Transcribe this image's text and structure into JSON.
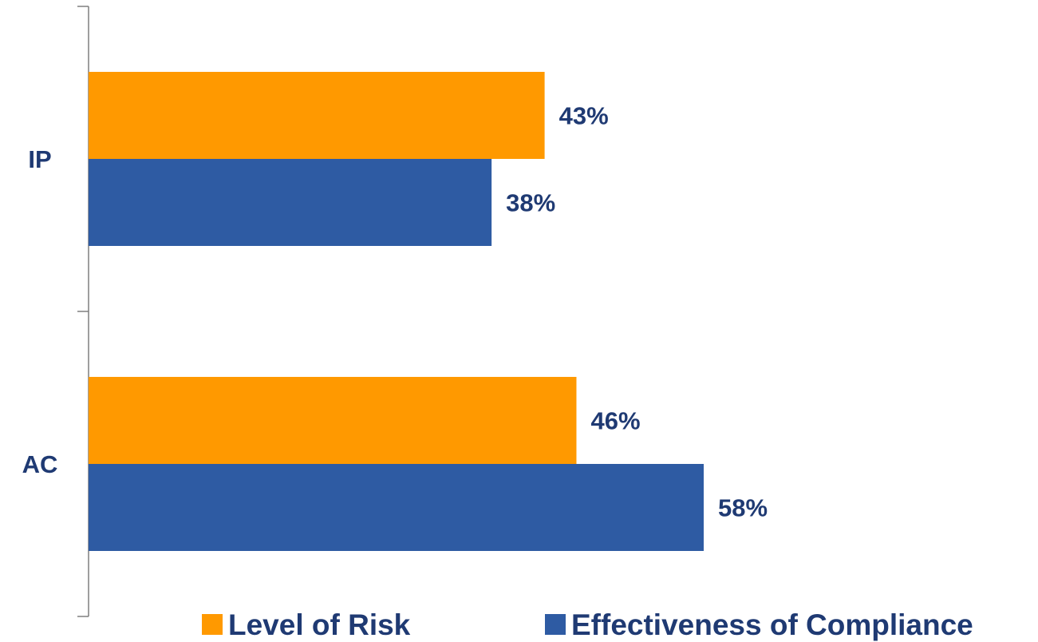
{
  "chart_data": {
    "type": "bar",
    "orientation": "horizontal",
    "categories": [
      "IP",
      "AC"
    ],
    "series": [
      {
        "name": "Level of Risk",
        "values": [
          43,
          46
        ],
        "labels": [
          "43%",
          "46%"
        ],
        "color": "#ff9900"
      },
      {
        "name": "Effectiveness of Compliance",
        "values": [
          38,
          58
        ],
        "labels": [
          "38%",
          "58%"
        ],
        "color": "#2e5ba3"
      }
    ],
    "xlim": [
      0,
      100
    ],
    "grid": false,
    "legend_position": "bottom",
    "label_color": "#1f3a73",
    "axis_color": "#7f7f7f"
  }
}
